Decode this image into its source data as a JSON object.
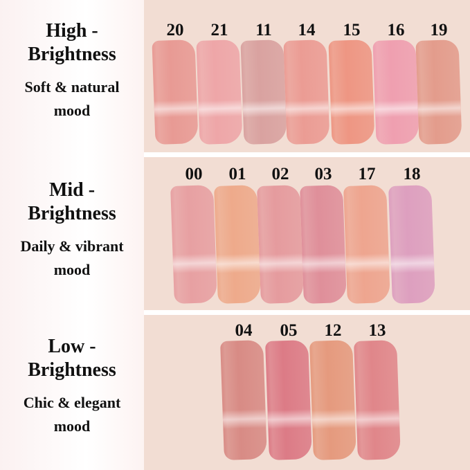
{
  "groups": [
    {
      "title": "High -",
      "title2": "Brightness",
      "sub": "Soft & natural",
      "sub2": "mood",
      "shades": [
        {
          "n": "20",
          "c": "#e89a94"
        },
        {
          "n": "21",
          "c": "#eea6a8"
        },
        {
          "n": "11",
          "c": "#d9a2a0"
        },
        {
          "n": "14",
          "c": "#eb9c94"
        },
        {
          "n": "15",
          "c": "#ee9683"
        },
        {
          "n": "16",
          "c": "#ef9fb0"
        },
        {
          "n": "19",
          "c": "#e39c8c"
        }
      ]
    },
    {
      "title": "Mid -",
      "title2": "Brightness",
      "sub": "Daily & vibrant",
      "sub2": "mood",
      "shades": [
        {
          "n": "00",
          "c": "#e7a0a2"
        },
        {
          "n": "01",
          "c": "#eeaa8b"
        },
        {
          "n": "02",
          "c": "#e59b9e"
        },
        {
          "n": "03",
          "c": "#df8f9a"
        },
        {
          "n": "17",
          "c": "#eea58f"
        },
        {
          "n": "18",
          "c": "#dd9fbf"
        }
      ]
    },
    {
      "title": "Low -",
      "title2": "Brightness",
      "sub": "Chic & elegant",
      "sub2": "mood",
      "shades": [
        {
          "n": "04",
          "c": "#d88b85"
        },
        {
          "n": "05",
          "c": "#dc7b86"
        },
        {
          "n": "12",
          "c": "#e59a7e"
        },
        {
          "n": "13",
          "c": "#e0868a"
        }
      ]
    }
  ]
}
